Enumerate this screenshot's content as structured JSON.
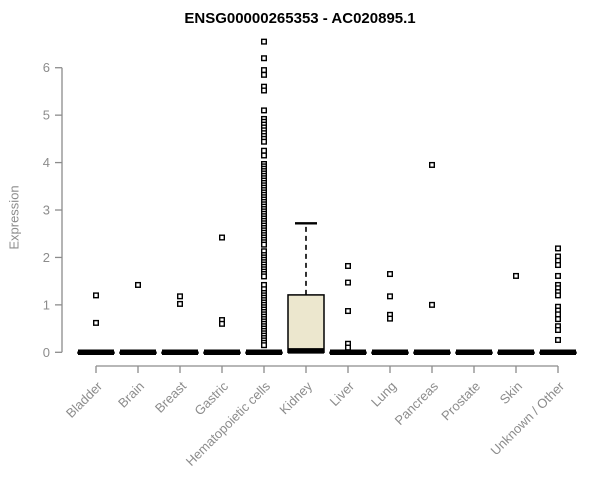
{
  "chart_data": {
    "type": "boxplot",
    "title": "ENSG00000265353 - AC020895.1",
    "ylabel": "Expression",
    "xlabel": "",
    "ylim": [
      0,
      6.6
    ],
    "yticks": [
      0,
      1,
      2,
      3,
      4,
      5,
      6
    ],
    "grid": false,
    "legend": "none",
    "colors": {
      "box_fill": "#ece7ce",
      "box_stroke": "#000000",
      "axis": "#8c8c8c",
      "tick_label": "#8c8c8c",
      "title": "#000000",
      "outlier": "#000000"
    },
    "categories": [
      "Bladder",
      "Brain",
      "Breast",
      "Gastric",
      "Hematopoietic cells",
      "Kidney",
      "Liver",
      "Lung",
      "Pancreas",
      "Prostate",
      "Skin",
      "Unknown / Other"
    ],
    "boxes": [
      {
        "median": 0,
        "q1": 0,
        "q3": 0,
        "whisker_low": 0,
        "whisker_high": 0
      },
      {
        "median": 0,
        "q1": 0,
        "q3": 0,
        "whisker_low": 0,
        "whisker_high": 0
      },
      {
        "median": 0,
        "q1": 0,
        "q3": 0,
        "whisker_low": 0,
        "whisker_high": 0
      },
      {
        "median": 0,
        "q1": 0,
        "q3": 0,
        "whisker_low": 0,
        "whisker_high": 0
      },
      {
        "median": 0,
        "q1": 0,
        "q3": 0,
        "whisker_low": 0,
        "whisker_high": 0
      },
      {
        "median": 0.03,
        "q1": 0,
        "q3": 1.21,
        "whisker_low": 0,
        "whisker_high": 2.72
      },
      {
        "median": 0,
        "q1": 0,
        "q3": 0,
        "whisker_low": 0,
        "whisker_high": 0
      },
      {
        "median": 0,
        "q1": 0,
        "q3": 0,
        "whisker_low": 0,
        "whisker_high": 0
      },
      {
        "median": 0,
        "q1": 0,
        "q3": 0,
        "whisker_low": 0,
        "whisker_high": 0
      },
      {
        "median": 0,
        "q1": 0,
        "q3": 0,
        "whisker_low": 0,
        "whisker_high": 0
      },
      {
        "median": 0,
        "q1": 0,
        "q3": 0,
        "whisker_low": 0,
        "whisker_high": 0
      },
      {
        "median": 0,
        "q1": 0,
        "q3": 0,
        "whisker_low": 0,
        "whisker_high": 0
      }
    ],
    "outliers": [
      [
        1.2,
        0.62
      ],
      [
        1.42
      ],
      [
        1.18,
        1.02
      ],
      [
        2.42,
        0.68,
        0.6
      ],
      [
        6.55,
        6.2,
        5.95,
        5.85,
        5.6,
        5.52,
        5.1,
        4.92,
        4.86,
        4.8,
        4.74,
        4.68,
        4.62,
        4.56,
        4.5,
        4.44,
        4.25,
        4.15,
        3.97,
        3.92,
        3.87,
        3.82,
        3.77,
        3.72,
        3.67,
        3.62,
        3.57,
        3.52,
        3.47,
        3.42,
        3.37,
        3.32,
        3.27,
        3.22,
        3.17,
        3.12,
        3.07,
        3.02,
        2.97,
        2.92,
        2.87,
        2.82,
        2.77,
        2.72,
        2.67,
        2.62,
        2.57,
        2.52,
        2.47,
        2.42,
        2.37,
        2.32,
        2.27,
        2.13,
        2.05,
        2.0,
        1.95,
        1.9,
        1.85,
        1.8,
        1.75,
        1.7,
        1.65,
        1.6,
        1.42,
        1.33,
        1.25,
        1.2,
        1.15,
        1.1,
        1.05,
        1.0,
        0.95,
        0.9,
        0.85,
        0.8,
        0.75,
        0.7,
        0.65,
        0.6,
        0.55,
        0.5,
        0.45,
        0.4,
        0.35,
        0.3,
        0.25,
        0.2,
        0.15
      ],
      [],
      [
        1.82,
        1.47,
        0.87,
        0.18,
        0.1
      ],
      [
        1.65,
        1.18,
        0.79,
        0.71
      ],
      [
        3.95,
        1.0
      ],
      [],
      [
        1.61
      ],
      [
        2.19,
        2.02,
        1.93,
        1.84,
        1.61,
        1.42,
        1.35,
        1.27,
        1.2,
        0.96,
        0.88,
        0.8,
        0.7,
        0.55,
        0.47,
        0.26
      ]
    ]
  }
}
